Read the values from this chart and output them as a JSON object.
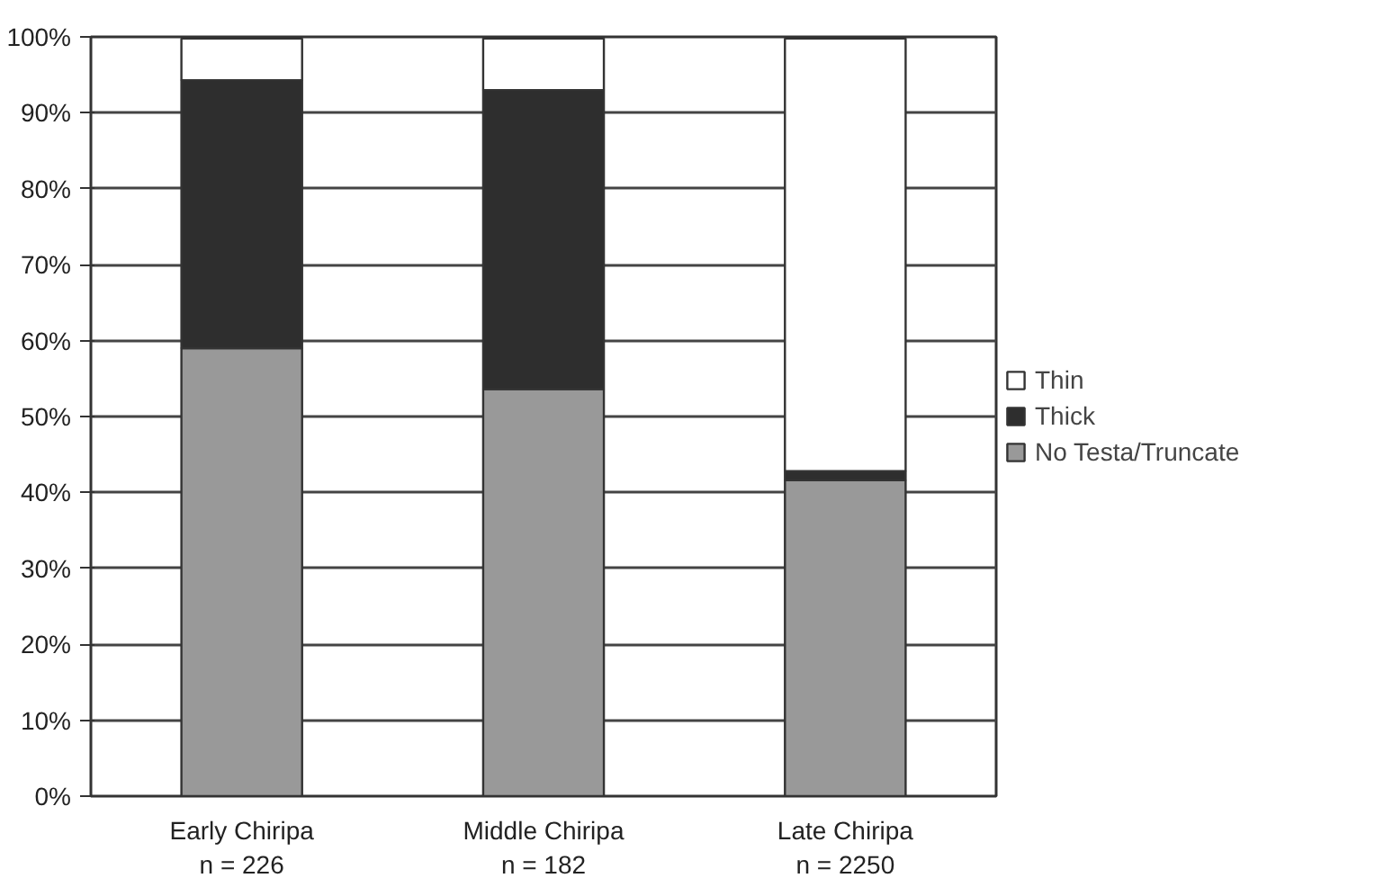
{
  "chart_data": {
    "type": "bar",
    "stacked": true,
    "categories": [
      "Early Chiripa\nn = 226",
      "Middle Chiripa\nn = 182",
      "Late Chiripa\nn = 2250"
    ],
    "series": [
      {
        "name": "No Testa/Truncate",
        "color": "#999999",
        "values": [
          59.0,
          53.6,
          41.6
        ]
      },
      {
        "name": "Thick",
        "color": "#2e2e2e",
        "values": [
          35.3,
          39.4,
          1.2
        ]
      },
      {
        "name": "Thin",
        "color": "#ffffff",
        "values": [
          5.5,
          6.8,
          57.0
        ]
      }
    ],
    "ylim": [
      0,
      100
    ],
    "yticks": [
      {
        "value": 0,
        "label": "0%"
      },
      {
        "value": 10,
        "label": "10%"
      },
      {
        "value": 20,
        "label": "20%"
      },
      {
        "value": 30,
        "label": "30%"
      },
      {
        "value": 40,
        "label": "40%"
      },
      {
        "value": 50,
        "label": "50%"
      },
      {
        "value": 60,
        "label": "60%"
      },
      {
        "value": 70,
        "label": "70%"
      },
      {
        "value": 80,
        "label": "80%"
      },
      {
        "value": 90,
        "label": "90%"
      },
      {
        "value": 100,
        "label": "100%"
      }
    ],
    "grid": "y",
    "legend": "right"
  }
}
